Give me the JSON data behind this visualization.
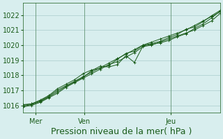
{
  "bg_color": "#d8eeee",
  "grid_color": "#aacccc",
  "line_color": "#1a5c1a",
  "marker_color": "#1a5c1a",
  "xlabel": "Pression niveau de la mer( hPa )",
  "xlabel_fontsize": 9,
  "ylabel_fontsize": 7,
  "yticks": [
    1016,
    1017,
    1018,
    1019,
    1020,
    1021,
    1022
  ],
  "ylim": [
    1015.5,
    1022.8
  ],
  "xlim_days": [
    0,
    8
  ],
  "day_labels": [
    "Mer",
    "Ven",
    "Jeu"
  ],
  "day_positions": [
    0.5,
    2.5,
    6.0
  ],
  "series": [
    [
      1016.0,
      1016.1,
      1016.3,
      1016.6,
      1017.0,
      1017.3,
      1017.6,
      1017.9,
      1018.2,
      1018.5,
      1018.8,
      1019.1,
      1019.4,
      1019.7,
      1020.0,
      1020.2,
      1020.4,
      1020.6,
      1020.8,
      1021.0,
      1021.3,
      1021.6,
      1021.9,
      1022.2
    ],
    [
      1015.9,
      1016.0,
      1016.2,
      1016.5,
      1016.8,
      1017.2,
      1017.5,
      1017.8,
      1018.1,
      1018.4,
      1018.7,
      1018.9,
      1019.2,
      1019.5,
      1019.9,
      1020.0,
      1020.2,
      1020.4,
      1020.6,
      1020.8,
      1021.0,
      1021.3,
      1021.6,
      1022.1
    ],
    [
      1015.95,
      1016.05,
      1016.25,
      1016.55,
      1016.9,
      1017.25,
      1017.55,
      1017.85,
      1018.3,
      1018.6,
      1018.55,
      1018.7,
      1019.3,
      1018.85,
      1019.95,
      1020.05,
      1020.15,
      1020.3,
      1020.55,
      1020.75,
      1021.1,
      1021.4,
      1021.8,
      1022.25
    ],
    [
      1016.05,
      1016.1,
      1016.35,
      1016.65,
      1017.1,
      1017.4,
      1017.7,
      1018.1,
      1018.35,
      1018.45,
      1018.65,
      1019.05,
      1019.45,
      1019.6,
      1020.0,
      1020.1,
      1020.25,
      1020.5,
      1020.7,
      1021.05,
      1021.2,
      1021.55,
      1021.95,
      1022.3
    ]
  ],
  "n_points": 24
}
